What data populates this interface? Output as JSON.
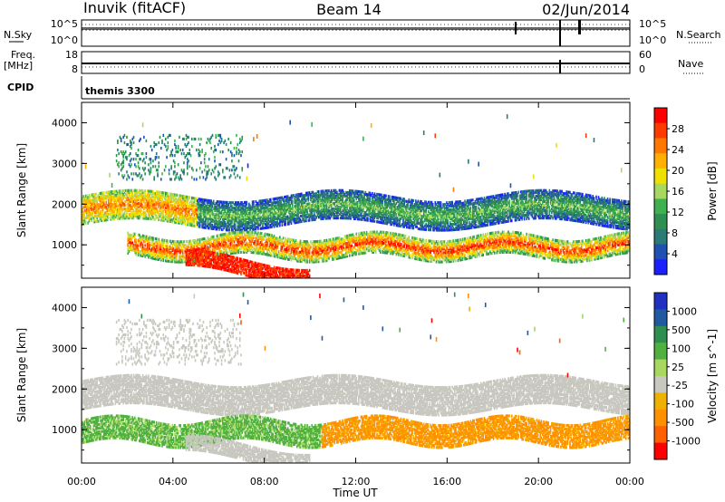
{
  "header": {
    "station": "Inuvik (fitACF)",
    "beam": "Beam 14",
    "date": "02/Jun/2014"
  },
  "side_labels": {
    "nsky": "N.Sky",
    "freq": "Freq.",
    "freq_unit": "[MHz]",
    "cpid": "CPID",
    "nsearch": "N.Search",
    "nave": "Nave"
  },
  "cpid_text": "themis 3300",
  "scales": {
    "noise_left_top": "10^5",
    "noise_left_bottom": "10^0",
    "noise_right_top": "10^5",
    "noise_right_bottom": "10^0",
    "freq_top": "18",
    "freq_bottom": "8",
    "nave_top": "60",
    "nave_bottom": "0"
  },
  "chart_data": [
    {
      "type": "heatmap",
      "name": "power",
      "xlabel": "Time UT",
      "ylabel": "Slant Range [km]",
      "xlim": [
        0,
        24
      ],
      "ylim": [
        180,
        4500
      ],
      "x_ticks": [
        "00:00",
        "04:00",
        "08:00",
        "12:00",
        "16:00",
        "20:00",
        "00:00"
      ],
      "y_ticks": [
        1000,
        2000,
        3000,
        4000
      ],
      "colorbar": {
        "label": "Power [dB]",
        "ticks": [
          "28",
          "24",
          "20",
          "16",
          "12",
          "8",
          "4"
        ],
        "colors": [
          "#ff0000",
          "#ff3a00",
          "#ff7800",
          "#ffb000",
          "#f0e000",
          "#a8d860",
          "#40b050",
          "#2f8f50",
          "#2a7a78",
          "#2050b0",
          "#1a20ff"
        ]
      },
      "regions": [
        {
          "band": "backscatter 2000 km",
          "t_range": [
            0,
            24
          ],
          "range_km": [
            1500,
            2300
          ],
          "power_db": 14
        },
        {
          "band": "backscatter 1000 km",
          "t_range": [
            2,
            24
          ],
          "range_km": [
            700,
            1300
          ],
          "power_db": 26
        },
        {
          "band": "near range",
          "t_range": [
            4.5,
            10
          ],
          "range_km": [
            200,
            700
          ],
          "power_db": 30
        },
        {
          "band": "upper 3000 km",
          "t_range": [
            1.5,
            7
          ],
          "range_km": [
            2600,
            3700
          ],
          "power_db": 8
        }
      ]
    },
    {
      "type": "heatmap",
      "name": "velocity",
      "xlabel": "Time UT",
      "ylabel": "Slant Range [km]",
      "xlim": [
        0,
        24
      ],
      "ylim": [
        180,
        4500
      ],
      "x_ticks": [
        "00:00",
        "04:00",
        "08:00",
        "12:00",
        "16:00",
        "20:00",
        "00:00"
      ],
      "y_ticks": [
        1000,
        2000,
        3000,
        4000
      ],
      "colorbar": {
        "label": "Velocity [m s^-1]",
        "ticks": [
          "1000",
          "500",
          "100",
          "25",
          "-25",
          "-100",
          "-500",
          "-1000"
        ],
        "colors": [
          "#2030c0",
          "#205aa0",
          "#2f8f50",
          "#50b040",
          "#a8d860",
          "#c8c8c0",
          "#f0b000",
          "#ff9000",
          "#ff6000",
          "#ff0000"
        ]
      },
      "regions": [
        {
          "band": "ground scatter 2000 km",
          "t_range": [
            0,
            24
          ],
          "range_km": [
            1500,
            2300
          ],
          "velocity": 0
        },
        {
          "band": "positive flow",
          "t_range": [
            0.5,
            11
          ],
          "range_km": [
            500,
            1300
          ],
          "velocity": 150
        },
        {
          "band": "negative flow",
          "t_range": [
            10,
            24
          ],
          "range_km": [
            600,
            1300
          ],
          "velocity": -150
        }
      ]
    }
  ]
}
